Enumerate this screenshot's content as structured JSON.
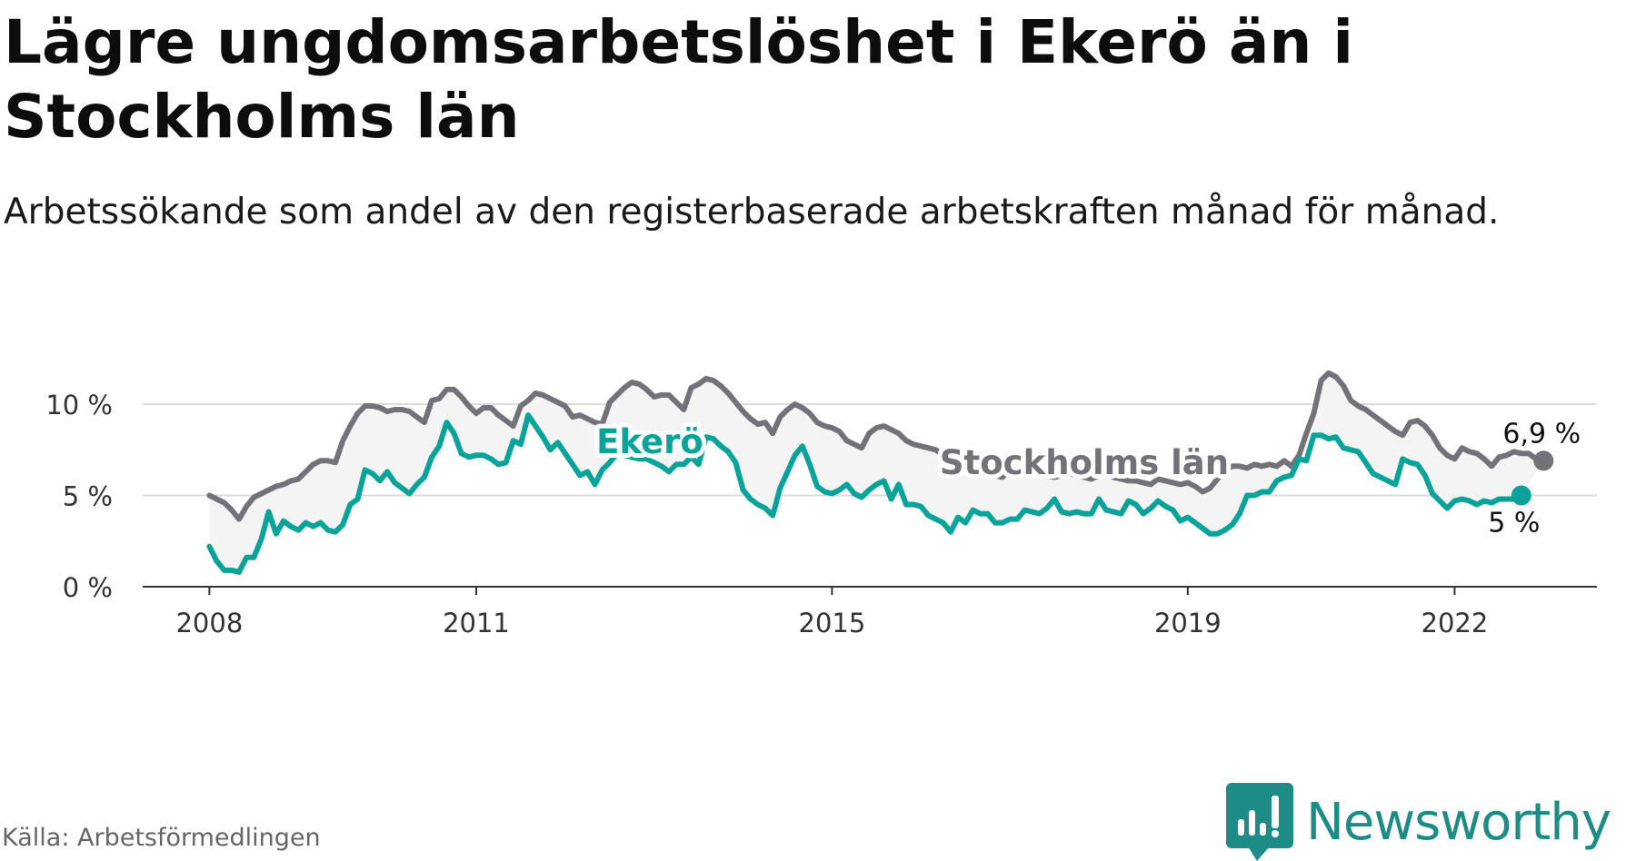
{
  "title": "Lägre ungdomsarbetslöshet i Ekerö än i Stockholms län",
  "subtitle": "Arbetssökande som andel av den registerbaserade arbetskraften månad för månad.",
  "source": "Källa: Arbetsförmedlingen",
  "brand": "Newsworthy",
  "colors": {
    "stockholm": "#737278",
    "ekero": "#0aa39a",
    "band": "#f4f4f5",
    "grid": "#dcdcdc",
    "axis": "#333333",
    "brand": "#1e8c86"
  },
  "chart_data": {
    "type": "line",
    "x_start": 2008.0,
    "x_step": 0.0833333,
    "xlim": [
      2007.25,
      2023.6
    ],
    "ylim": [
      0,
      10
    ],
    "yticks": [
      0,
      5,
      10
    ],
    "ytick_labels": [
      "0 %",
      "5 %",
      "10 %"
    ],
    "xticks": [
      2008,
      2011,
      2015,
      2019,
      2022
    ],
    "xtick_labels": [
      "2008",
      "2011",
      "2015",
      "2019",
      "2022"
    ],
    "fill_between": true,
    "series": [
      {
        "name": "Stockholms län",
        "label": "Stockholms län",
        "end_label": "6,9 %",
        "values": [
          5.0,
          4.8,
          4.6,
          4.2,
          3.7,
          4.4,
          4.9,
          5.1,
          5.3,
          5.5,
          5.6,
          5.8,
          5.9,
          6.3,
          6.7,
          6.9,
          6.9,
          6.8,
          8.0,
          8.8,
          9.5,
          9.9,
          9.9,
          9.8,
          9.6,
          9.7,
          9.7,
          9.6,
          9.3,
          9.0,
          10.2,
          10.3,
          10.8,
          10.8,
          10.4,
          9.9,
          9.5,
          9.8,
          9.8,
          9.4,
          9.1,
          8.8,
          9.9,
          10.2,
          10.6,
          10.5,
          10.3,
          10.1,
          9.9,
          9.3,
          9.4,
          9.2,
          9.0,
          8.9,
          10.1,
          10.5,
          10.9,
          11.2,
          11.1,
          10.8,
          10.4,
          10.5,
          10.5,
          10.1,
          9.7,
          10.9,
          11.1,
          11.4,
          11.3,
          11.0,
          10.6,
          10.1,
          9.6,
          9.2,
          8.9,
          9.0,
          8.4,
          9.3,
          9.7,
          10.0,
          9.8,
          9.5,
          9.0,
          8.8,
          8.7,
          8.5,
          8.0,
          7.8,
          7.6,
          8.4,
          8.7,
          8.8,
          8.6,
          8.4,
          8.0,
          7.8,
          7.7,
          7.6,
          7.5,
          7.2,
          7.0,
          6.8,
          6.5,
          6.3,
          6.4,
          6.3,
          6.1,
          6.0,
          6.4,
          6.5,
          6.3,
          6.3,
          6.2,
          6.1,
          6.0,
          6.1,
          6.2,
          6.1,
          6.0,
          5.9,
          6.1,
          6.2,
          6.0,
          5.9,
          5.8,
          5.8,
          5.7,
          5.6,
          5.9,
          5.8,
          5.7,
          5.6,
          5.7,
          5.5,
          5.2,
          5.4,
          5.9,
          6.4,
          6.6,
          6.6,
          6.5,
          6.7,
          6.6,
          6.7,
          6.6,
          6.9,
          6.6,
          7.2,
          8.4,
          9.5,
          11.3,
          11.7,
          11.5,
          11.0,
          10.2,
          9.9,
          9.7,
          9.4,
          9.1,
          8.8,
          8.5,
          8.3,
          9.0,
          9.1,
          8.8,
          8.3,
          7.6,
          7.2,
          7.0,
          7.6,
          7.4,
          7.3,
          7.0,
          6.6,
          7.1,
          7.2,
          7.4,
          7.3,
          7.3,
          7.0,
          6.9
        ]
      },
      {
        "name": "Ekerö",
        "label": "Ekerö",
        "end_label": "5 %",
        "values": [
          2.2,
          1.4,
          0.9,
          0.9,
          0.8,
          1.6,
          1.6,
          2.6,
          4.1,
          2.9,
          3.6,
          3.3,
          3.1,
          3.5,
          3.3,
          3.5,
          3.1,
          3.0,
          3.4,
          4.5,
          4.8,
          6.4,
          6.2,
          5.8,
          6.3,
          5.7,
          5.4,
          5.1,
          5.6,
          6.0,
          7.1,
          7.7,
          9.0,
          8.4,
          7.3,
          7.1,
          7.2,
          7.2,
          7.0,
          6.7,
          6.8,
          8.0,
          7.8,
          9.4,
          8.8,
          8.2,
          7.5,
          7.9,
          7.3,
          6.7,
          6.1,
          6.3,
          5.6,
          6.4,
          6.8,
          7.3,
          7.2,
          7.1,
          7.0,
          7.0,
          6.8,
          6.6,
          6.3,
          6.7,
          6.7,
          7.1,
          6.7,
          8.2,
          8.1,
          7.7,
          7.4,
          6.8,
          5.3,
          4.8,
          4.5,
          4.3,
          3.9,
          5.4,
          6.3,
          7.2,
          7.7,
          6.7,
          5.5,
          5.2,
          5.1,
          5.3,
          5.6,
          5.1,
          4.9,
          5.3,
          5.6,
          5.8,
          4.8,
          5.6,
          4.5,
          4.5,
          4.4,
          3.9,
          3.7,
          3.5,
          3.0,
          3.8,
          3.5,
          4.2,
          4.0,
          4.0,
          3.5,
          3.5,
          3.7,
          3.7,
          4.2,
          4.1,
          4.0,
          4.3,
          4.8,
          4.1,
          4.0,
          4.1,
          4.0,
          4.0,
          4.8,
          4.2,
          4.1,
          4.0,
          4.7,
          4.5,
          4.0,
          4.3,
          4.7,
          4.4,
          4.2,
          3.6,
          3.8,
          3.5,
          3.2,
          2.9,
          2.9,
          3.1,
          3.4,
          4.0,
          5.0,
          5.0,
          5.2,
          5.2,
          5.8,
          6.0,
          6.1,
          7.0,
          6.9,
          8.3,
          8.3,
          8.1,
          8.2,
          7.6,
          7.5,
          7.4,
          6.8,
          6.2,
          6.0,
          5.8,
          5.6,
          7.0,
          6.8,
          6.7,
          6.1,
          5.1,
          4.7,
          4.3,
          4.7,
          4.8,
          4.7,
          4.5,
          4.7,
          4.6,
          4.8,
          4.8,
          4.8,
          5.0
        ]
      }
    ]
  }
}
